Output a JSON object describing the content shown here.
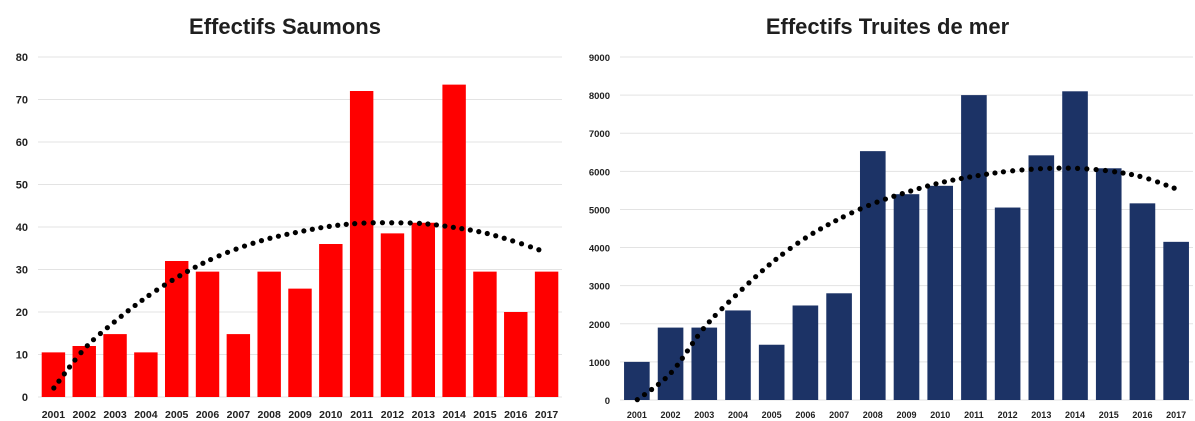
{
  "chart_data": [
    {
      "type": "bar",
      "title": "Effectifs Saumons",
      "categories": [
        "2001",
        "2002",
        "2003",
        "2004",
        "2005",
        "2006",
        "2007",
        "2008",
        "2009",
        "2010",
        "2011",
        "2012",
        "2013",
        "2014",
        "2015",
        "2016",
        "2017"
      ],
      "values": [
        10.5,
        12,
        14.8,
        10.5,
        32,
        29.5,
        14.8,
        29.5,
        25.5,
        36,
        72,
        38.5,
        41,
        73.5,
        29.5,
        20,
        29.5
      ],
      "yticks": [
        "0",
        "10",
        "20",
        "30",
        "40",
        "50",
        "60",
        "70",
        "80"
      ],
      "ylim": [
        0,
        80
      ],
      "bar_color": "#ff0000",
      "trend": "polynomial dotted",
      "trend_values": [
        2,
        11.3,
        17.8,
        23.4,
        28.1,
        32,
        35,
        37.3,
        38.9,
        40.2,
        40.9,
        41,
        40.8,
        39.9,
        38.6,
        36.5,
        34
      ],
      "grid": true,
      "xlabel": "",
      "ylabel": ""
    },
    {
      "type": "bar",
      "title": "Effectifs Truites de mer",
      "categories": [
        "2001",
        "2002",
        "2003",
        "2004",
        "2005",
        "2006",
        "2007",
        "2008",
        "2009",
        "2010",
        "2011",
        "2012",
        "2013",
        "2014",
        "2015",
        "2016",
        "2017"
      ],
      "values": [
        1000,
        1900,
        1900,
        2350,
        1450,
        2480,
        2800,
        6530,
        5400,
        5620,
        8000,
        5050,
        6420,
        8100,
        6080,
        5160,
        4150
      ],
      "yticks": [
        "0",
        "1000",
        "2000",
        "3000",
        "4000",
        "5000",
        "6000",
        "7000",
        "8000",
        "9000"
      ],
      "ylim": [
        0,
        9000
      ],
      "bar_color": "#1c3366",
      "trend": "polynomial dotted",
      "trend_values": [
        0,
        700,
        1900,
        2800,
        3600,
        4250,
        4750,
        5150,
        5450,
        5700,
        5870,
        6000,
        6070,
        6080,
        6010,
        5850,
        5540
      ],
      "grid": true,
      "xlabel": "",
      "ylabel": ""
    }
  ]
}
